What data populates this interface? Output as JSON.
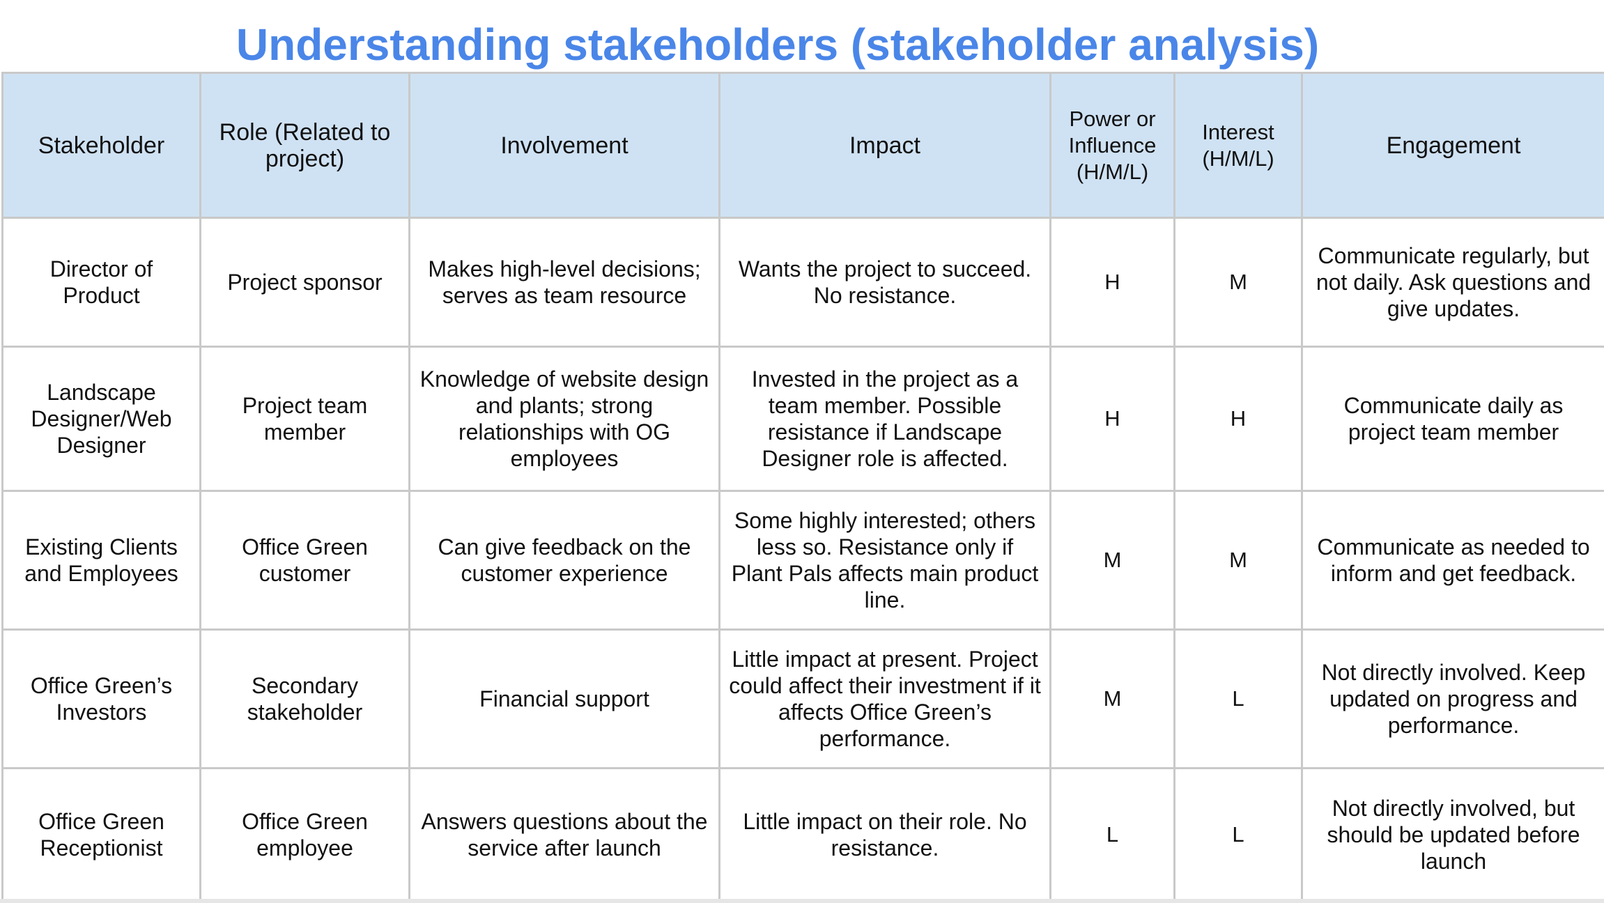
{
  "title": "Understanding stakeholders (stakeholder analysis)",
  "table": {
    "headers": [
      "Stakeholder",
      "Role (Related to project)",
      "Involvement",
      "Impact",
      "Power or Influence (H/M/L)",
      "Interest (H/M/L)",
      "Engagement"
    ],
    "rows": [
      {
        "stakeholder": "Director of Product",
        "role": "Project sponsor",
        "involvement": "Makes high-level decisions; serves as team resource",
        "impact": "Wants the project to succeed. No resistance.",
        "power": "H",
        "interest": "M",
        "engagement": "Communicate regularly, but not daily. Ask questions and give updates."
      },
      {
        "stakeholder": "Landscape Designer/Web Designer",
        "role": "Project team member",
        "involvement": "Knowledge of website design and plants; strong relationships with OG employees",
        "impact": "Invested in the project as a team member. Possible resistance if Landscape Designer role is affected.",
        "power": "H",
        "interest": "H",
        "engagement": "Communicate daily as project team member"
      },
      {
        "stakeholder": "Existing Clients and Employees",
        "role": "Office Green customer",
        "involvement": "Can give feedback on the customer experience",
        "impact": "Some highly interested; others less so. Resistance only if Plant Pals affects main product line.",
        "power": "M",
        "interest": "M",
        "engagement": "Communicate as needed to inform and get feedback."
      },
      {
        "stakeholder": "Office Green’s Investors",
        "role": "Secondary stakeholder",
        "involvement": "Financial support",
        "impact": "Little impact at present. Project could affect their investment if it affects Office Green’s performance.",
        "power": "M",
        "interest": "L",
        "engagement": "Not directly involved. Keep updated on progress and performance."
      },
      {
        "stakeholder": "Office Green Receptionist",
        "role": "Office Green employee",
        "involvement": "Answers questions about the service after launch",
        "impact": "Little impact on their role. No resistance.",
        "power": "L",
        "interest": "L",
        "engagement": "Not directly involved, but should be updated before launch"
      }
    ]
  },
  "colors": {
    "title": "#4a86e8",
    "header_bg": "#cfe2f3",
    "grid": "#c9c9c9"
  }
}
